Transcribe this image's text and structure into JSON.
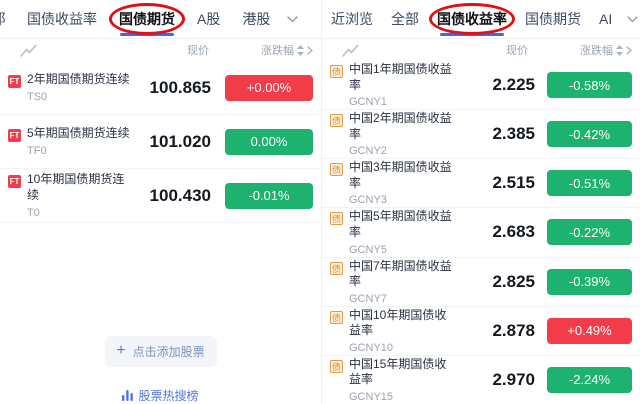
{
  "colors": {
    "up_red": "#f23c4a",
    "down_green": "#1db36e",
    "accent_blue": "#3a6ce1",
    "annotation_red": "#e30f16",
    "link_blue": "#4f78da",
    "bond_badge_orange": "#e49a3d"
  },
  "left_panel": {
    "tabs": [
      {
        "id": "tab-clipped-edge",
        "label": "阝",
        "state": "clipped"
      },
      {
        "id": "tab-bond-yield",
        "label": "国债收益率",
        "state": "normal"
      },
      {
        "id": "tab-bond-futures",
        "label": "国债期货",
        "state": "active-circled"
      },
      {
        "id": "tab-a-shares",
        "label": "A股",
        "state": "normal"
      },
      {
        "id": "tab-hk-shares",
        "label": "港股",
        "state": "normal"
      }
    ],
    "header": {
      "price_col": "现价",
      "change_col": "涨跌幅"
    },
    "badge_label": "FT",
    "rows": [
      {
        "name": "2年期国债期货连续",
        "code": "TS0",
        "price": "100.865",
        "change": "+0.00%",
        "direction": "up"
      },
      {
        "name": "5年期国债期货连续",
        "code": "TF0",
        "price": "101.020",
        "change": "0.00%",
        "direction": "down"
      },
      {
        "name": "10年期国债期货连续",
        "code": "T0",
        "price": "100.430",
        "change": "-0.01%",
        "direction": "down"
      }
    ],
    "add_stock_button": "点击添加股票",
    "hot_search_link": "股票热搜榜"
  },
  "right_panel": {
    "tabs": [
      {
        "id": "tab-recently-viewed",
        "label": "近浏览",
        "state": "normal"
      },
      {
        "id": "tab-all",
        "label": "全部",
        "state": "normal"
      },
      {
        "id": "tab-bond-yield",
        "label": "国债收益率",
        "state": "active-circled"
      },
      {
        "id": "tab-bond-futures",
        "label": "国债期货",
        "state": "normal"
      },
      {
        "id": "tab-ai",
        "label": "AI",
        "state": "normal"
      }
    ],
    "header": {
      "price_col": "现价",
      "change_col": "涨跌幅"
    },
    "badge_label": "债",
    "rows": [
      {
        "name": "中国1年期国债收益率",
        "code": "GCNY1",
        "price": "2.225",
        "change": "-0.58%",
        "direction": "down"
      },
      {
        "name": "中国2年期国债收益率",
        "code": "GCNY2",
        "price": "2.385",
        "change": "-0.42%",
        "direction": "down"
      },
      {
        "name": "中国3年期国债收益率",
        "code": "GCNY3",
        "price": "2.515",
        "change": "-0.51%",
        "direction": "down"
      },
      {
        "name": "中国5年期国债收益率",
        "code": "GCNY5",
        "price": "2.683",
        "change": "-0.22%",
        "direction": "down"
      },
      {
        "name": "中国7年期国债收益率",
        "code": "GCNY7",
        "price": "2.825",
        "change": "-0.39%",
        "direction": "down"
      },
      {
        "name": "中国10年期国债收益率",
        "code": "GCNY10",
        "price": "2.878",
        "change": "+0.49%",
        "direction": "up"
      },
      {
        "name": "中国15年期国债收益率",
        "code": "GCNY15",
        "price": "2.970",
        "change": "-2.24%",
        "direction": "down"
      }
    ]
  }
}
